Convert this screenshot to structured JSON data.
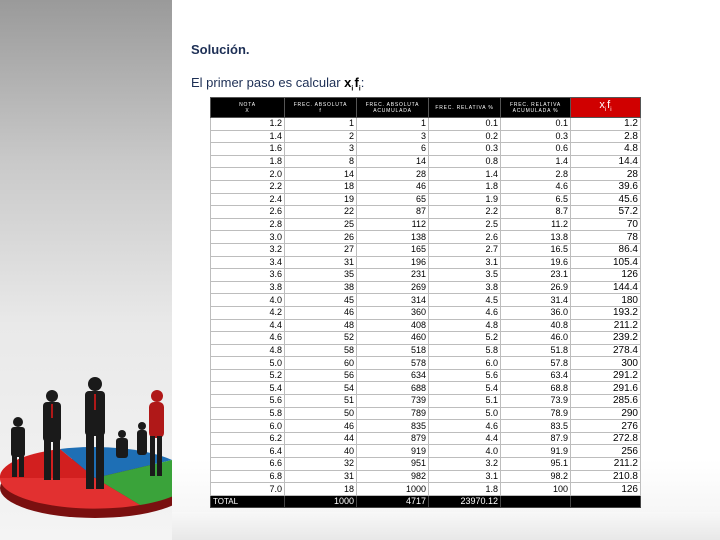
{
  "heading": "Solución.",
  "intro": {
    "text": "El primer paso es calcular ",
    "x": "x",
    "x_sub": "i",
    "f": "f",
    "f_sub": "i",
    "colon": ":"
  },
  "table": {
    "headers": {
      "nota": [
        "NOTA",
        "X"
      ],
      "frec_abs": [
        "FREC. ABSOLUTA",
        "f"
      ],
      "frec_abs_acum": [
        "FREC. ABSOLUTA",
        "ACUMULADA"
      ],
      "frec_rel": [
        "FREC. RELATIVA %"
      ],
      "frec_rel_acum": [
        "FREC. RELATIVA",
        "ACUMULADA %"
      ],
      "xf": [
        "x",
        "i",
        "f",
        "i"
      ]
    },
    "rows": [
      [
        "1.2",
        "1",
        "1",
        "0.1",
        "0.1",
        "1.2"
      ],
      [
        "1.4",
        "2",
        "3",
        "0.2",
        "0.3",
        "2.8"
      ],
      [
        "1.6",
        "3",
        "6",
        "0.3",
        "0.6",
        "4.8"
      ],
      [
        "1.8",
        "8",
        "14",
        "0.8",
        "1.4",
        "14.4"
      ],
      [
        "2.0",
        "14",
        "28",
        "1.4",
        "2.8",
        "28"
      ],
      [
        "2.2",
        "18",
        "46",
        "1.8",
        "4.6",
        "39.6"
      ],
      [
        "2.4",
        "19",
        "65",
        "1.9",
        "6.5",
        "45.6"
      ],
      [
        "2.6",
        "22",
        "87",
        "2.2",
        "8.7",
        "57.2"
      ],
      [
        "2.8",
        "25",
        "112",
        "2.5",
        "11.2",
        "70"
      ],
      [
        "3.0",
        "26",
        "138",
        "2.6",
        "13.8",
        "78"
      ],
      [
        "3.2",
        "27",
        "165",
        "2.7",
        "16.5",
        "86.4"
      ],
      [
        "3.4",
        "31",
        "196",
        "3.1",
        "19.6",
        "105.4"
      ],
      [
        "3.6",
        "35",
        "231",
        "3.5",
        "23.1",
        "126"
      ],
      [
        "3.8",
        "38",
        "269",
        "3.8",
        "26.9",
        "144.4"
      ],
      [
        "4.0",
        "45",
        "314",
        "4.5",
        "31.4",
        "180"
      ],
      [
        "4.2",
        "46",
        "360",
        "4.6",
        "36.0",
        "193.2"
      ],
      [
        "4.4",
        "48",
        "408",
        "4.8",
        "40.8",
        "211.2"
      ],
      [
        "4.6",
        "52",
        "460",
        "5.2",
        "46.0",
        "239.2"
      ],
      [
        "4.8",
        "58",
        "518",
        "5.8",
        "51.8",
        "278.4"
      ],
      [
        "5.0",
        "60",
        "578",
        "6.0",
        "57.8",
        "300"
      ],
      [
        "5.2",
        "56",
        "634",
        "5.6",
        "63.4",
        "291.2"
      ],
      [
        "5.4",
        "54",
        "688",
        "5.4",
        "68.8",
        "291.6"
      ],
      [
        "5.6",
        "51",
        "739",
        "5.1",
        "73.9",
        "285.6"
      ],
      [
        "5.8",
        "50",
        "789",
        "5.0",
        "78.9",
        "290"
      ],
      [
        "6.0",
        "46",
        "835",
        "4.6",
        "83.5",
        "276"
      ],
      [
        "6.2",
        "44",
        "879",
        "4.4",
        "87.9",
        "272.8"
      ],
      [
        "6.4",
        "40",
        "919",
        "4.0",
        "91.9",
        "256"
      ],
      [
        "6.6",
        "32",
        "951",
        "3.2",
        "95.1",
        "211.2"
      ],
      [
        "6.8",
        "31",
        "982",
        "3.1",
        "98.2",
        "210.8"
      ],
      [
        "7.0",
        "18",
        "1000",
        "1.8",
        "100",
        "126"
      ]
    ],
    "total": [
      "TOTAL",
      "1000",
      "4717",
      "23970.12",
      "",
      ""
    ]
  },
  "colors": {
    "header_bg": "#000000",
    "accent_header": "#d00000",
    "title_text": "#1d2f55"
  }
}
